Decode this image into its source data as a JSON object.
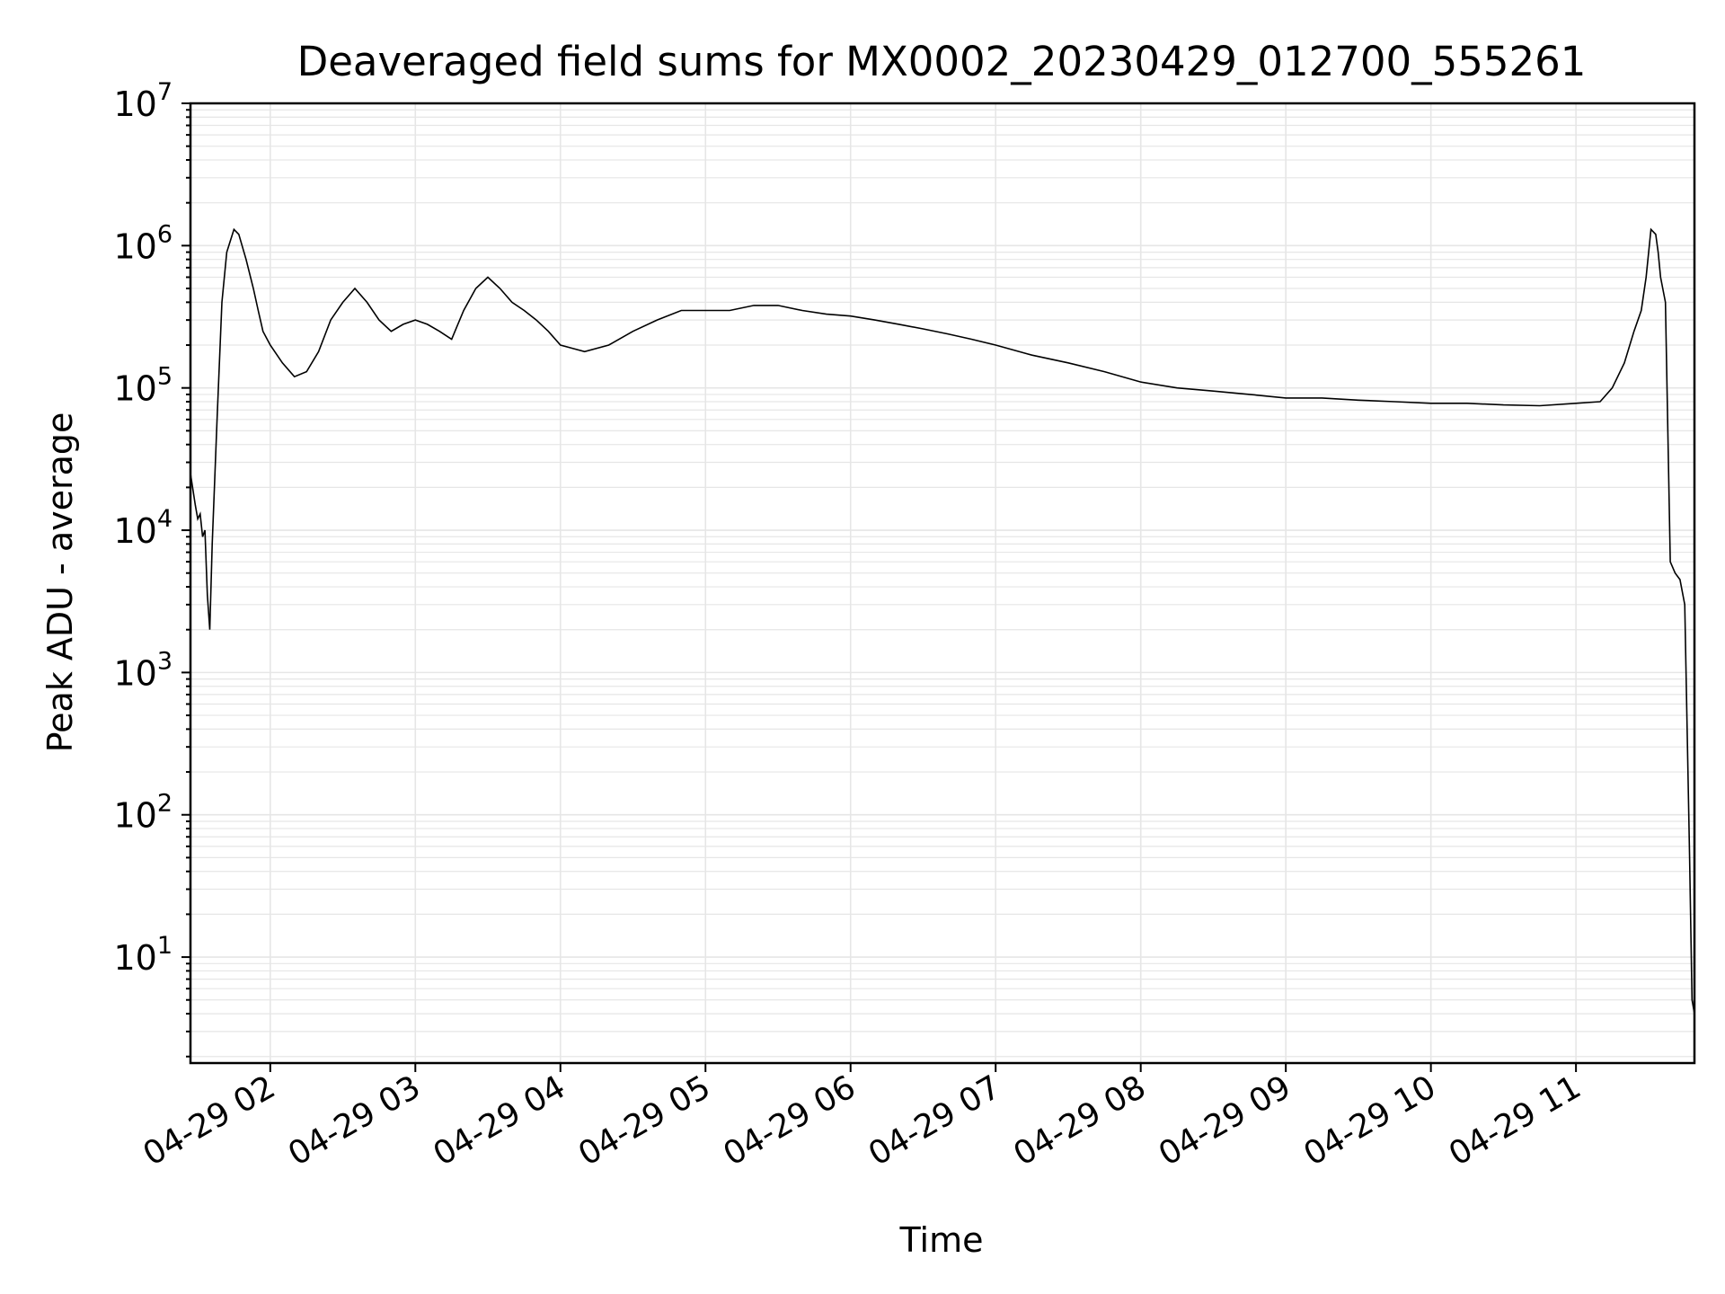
{
  "chart_data": {
    "type": "line",
    "title": "Deaveraged field sums for MX0002_20230429_012700_555261",
    "xlabel": "Time",
    "ylabel": "Peak ADU - average",
    "y_scale": "log",
    "ylim": [
      1.8,
      10000000
    ],
    "xlim": [
      "2023-04-29 01:27",
      "2023-04-29 11:49"
    ],
    "y_ticks": [
      {
        "value": 10,
        "base": "10",
        "exp": "1"
      },
      {
        "value": 100,
        "base": "10",
        "exp": "2"
      },
      {
        "value": 1000,
        "base": "10",
        "exp": "3"
      },
      {
        "value": 10000,
        "base": "10",
        "exp": "4"
      },
      {
        "value": 100000,
        "base": "10",
        "exp": "5"
      },
      {
        "value": 1000000,
        "base": "10",
        "exp": "6"
      },
      {
        "value": 10000000,
        "base": "10",
        "exp": "7"
      }
    ],
    "x_ticks": [
      {
        "value": "2023-04-29 02:00",
        "label": "04-29 02"
      },
      {
        "value": "2023-04-29 03:00",
        "label": "04-29 03"
      },
      {
        "value": "2023-04-29 04:00",
        "label": "04-29 04"
      },
      {
        "value": "2023-04-29 05:00",
        "label": "04-29 05"
      },
      {
        "value": "2023-04-29 06:00",
        "label": "04-29 06"
      },
      {
        "value": "2023-04-29 07:00",
        "label": "04-29 07"
      },
      {
        "value": "2023-04-29 08:00",
        "label": "04-29 08"
      },
      {
        "value": "2023-04-29 09:00",
        "label": "04-29 09"
      },
      {
        "value": "2023-04-29 10:00",
        "label": "04-29 10"
      },
      {
        "value": "2023-04-29 11:00",
        "label": "04-29 11"
      }
    ],
    "grid": true,
    "line_color": "#000000",
    "series": [
      {
        "x": [
          "2023-04-29 01:27",
          "2023-04-29 01:29",
          "2023-04-29 01:30",
          "2023-04-29 01:31",
          "2023-04-29 01:32",
          "2023-04-29 01:33",
          "2023-04-29 01:34",
          "2023-04-29 01:35",
          "2023-04-29 01:36",
          "2023-04-29 01:38",
          "2023-04-29 01:40",
          "2023-04-29 01:42",
          "2023-04-29 01:45",
          "2023-04-29 01:47",
          "2023-04-29 01:50",
          "2023-04-29 01:53",
          "2023-04-29 01:55",
          "2023-04-29 01:57",
          "2023-04-29 02:00",
          "2023-04-29 02:05",
          "2023-04-29 02:10",
          "2023-04-29 02:15",
          "2023-04-29 02:20",
          "2023-04-29 02:25",
          "2023-04-29 02:30",
          "2023-04-29 02:35",
          "2023-04-29 02:40",
          "2023-04-29 02:45",
          "2023-04-29 02:50",
          "2023-04-29 02:55",
          "2023-04-29 03:00",
          "2023-04-29 03:05",
          "2023-04-29 03:10",
          "2023-04-29 03:15",
          "2023-04-29 03:20",
          "2023-04-29 03:25",
          "2023-04-29 03:30",
          "2023-04-29 03:35",
          "2023-04-29 03:40",
          "2023-04-29 03:45",
          "2023-04-29 03:50",
          "2023-04-29 03:55",
          "2023-04-29 04:00",
          "2023-04-29 04:10",
          "2023-04-29 04:20",
          "2023-04-29 04:30",
          "2023-04-29 04:40",
          "2023-04-29 04:50",
          "2023-04-29 05:00",
          "2023-04-29 05:10",
          "2023-04-29 05:20",
          "2023-04-29 05:30",
          "2023-04-29 05:40",
          "2023-04-29 05:50",
          "2023-04-29 06:00",
          "2023-04-29 06:10",
          "2023-04-29 06:20",
          "2023-04-29 06:30",
          "2023-04-29 06:40",
          "2023-04-29 06:50",
          "2023-04-29 07:00",
          "2023-04-29 07:15",
          "2023-04-29 07:30",
          "2023-04-29 07:45",
          "2023-04-29 08:00",
          "2023-04-29 08:15",
          "2023-04-29 08:30",
          "2023-04-29 08:45",
          "2023-04-29 09:00",
          "2023-04-29 09:15",
          "2023-04-29 09:30",
          "2023-04-29 09:45",
          "2023-04-29 10:00",
          "2023-04-29 10:15",
          "2023-04-29 10:30",
          "2023-04-29 10:45",
          "2023-04-29 11:00",
          "2023-04-29 11:10",
          "2023-04-29 11:15",
          "2023-04-29 11:20",
          "2023-04-29 11:24",
          "2023-04-29 11:27",
          "2023-04-29 11:29",
          "2023-04-29 11:31",
          "2023-04-29 11:33",
          "2023-04-29 11:34",
          "2023-04-29 11:35",
          "2023-04-29 11:37",
          "2023-04-29 11:39",
          "2023-04-29 11:41",
          "2023-04-29 11:43",
          "2023-04-29 11:45",
          "2023-04-29 11:47",
          "2023-04-29 11:48",
          "2023-04-29 11:49"
        ],
        "y": [
          25000,
          15000,
          12000,
          13000,
          9000,
          10000,
          3500,
          2000,
          8000,
          60000,
          400000,
          900000,
          1300000,
          1200000,
          800000,
          500000,
          350000,
          250000,
          200000,
          150000,
          120000,
          130000,
          180000,
          300000,
          400000,
          500000,
          400000,
          300000,
          250000,
          280000,
          300000,
          280000,
          250000,
          220000,
          350000,
          500000,
          600000,
          500000,
          400000,
          350000,
          300000,
          250000,
          200000,
          180000,
          200000,
          250000,
          300000,
          350000,
          350000,
          350000,
          380000,
          380000,
          350000,
          330000,
          320000,
          300000,
          280000,
          260000,
          240000,
          220000,
          200000,
          170000,
          150000,
          130000,
          110000,
          100000,
          95000,
          90000,
          85000,
          85000,
          82000,
          80000,
          78000,
          78000,
          76000,
          75000,
          78000,
          80000,
          100000,
          150000,
          250000,
          350000,
          600000,
          1300000,
          1200000,
          900000,
          600000,
          400000,
          6000,
          5000,
          4500,
          3000,
          50,
          5,
          4
        ]
      }
    ]
  }
}
